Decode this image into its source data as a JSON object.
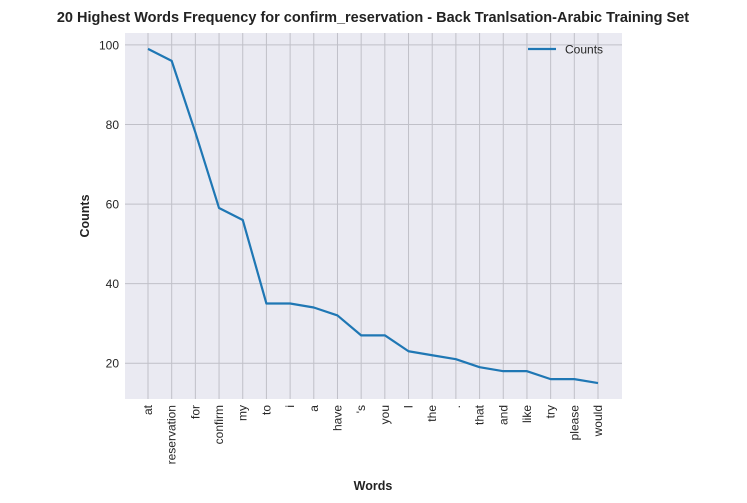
{
  "chart_data": {
    "type": "line",
    "title": "20 Highest Words Frequency for confirm_reservation - Back Tranlsation-Arabic Training Set",
    "xlabel": "Words",
    "ylabel": "Counts",
    "categories": [
      "at",
      "reservation",
      "for",
      "confirm",
      "my",
      "to",
      "i",
      "a",
      "have",
      "'s",
      "you",
      "I",
      "the",
      ".",
      "that",
      "and",
      "like",
      "try",
      "please",
      "would"
    ],
    "series": [
      {
        "name": "Counts",
        "values": [
          99,
          96,
          78,
          59,
          56,
          35,
          35,
          34,
          32,
          27,
          27,
          23,
          22,
          21,
          19,
          18,
          18,
          16,
          16,
          15
        ]
      }
    ],
    "ylim": [
      11,
      103
    ],
    "yticks": [
      20,
      40,
      60,
      80,
      100
    ],
    "grid": true,
    "legend": "upper-right",
    "colors": {
      "line": "#1f77b4",
      "background": "#eaeaf2",
      "grid": "#c0c0c8"
    }
  }
}
